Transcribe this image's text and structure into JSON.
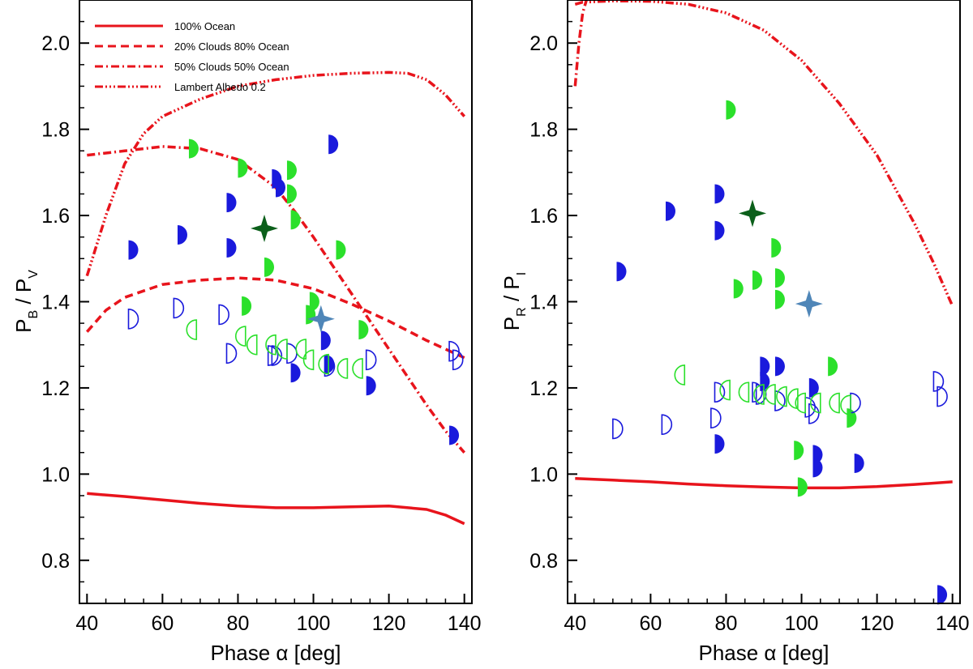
{
  "chart_data": [
    {
      "type": "scatter",
      "panel": "left",
      "xlabel": "Phase α [deg]",
      "ylabel_main": "P",
      "ylabel_sub1": "B",
      "ylabel_sep": " / P",
      "ylabel_sub2": "V",
      "xlim": [
        38,
        142
      ],
      "ylim": [
        0.7,
        2.1
      ],
      "xticks": [
        40,
        60,
        80,
        100,
        120,
        140
      ],
      "yticks": [
        0.8,
        1.0,
        1.2,
        1.4,
        1.6,
        1.8,
        2.0
      ],
      "xtick_labels": [
        "40",
        "60",
        "80",
        "100",
        "120",
        "140"
      ],
      "ytick_labels": [
        "0.8",
        "1.0",
        "1.2",
        "1.4",
        "1.6",
        "1.8",
        "2.0"
      ],
      "legend": [
        {
          "label": "100% Ocean",
          "style": "solid"
        },
        {
          "label": "20% Clouds 80% Ocean",
          "style": "dashed"
        },
        {
          "label": "50% Clouds 50% Ocean",
          "style": "dashdot"
        },
        {
          "label": "Lambert Albedo 0.2",
          "style": "dashdotdotdot"
        }
      ],
      "lines": [
        {
          "name": "100% Ocean",
          "style": "solid",
          "x": [
            40,
            50,
            60,
            70,
            80,
            90,
            100,
            110,
            120,
            130,
            135,
            140
          ],
          "y": [
            0.955,
            0.948,
            0.94,
            0.932,
            0.926,
            0.922,
            0.922,
            0.924,
            0.926,
            0.918,
            0.905,
            0.885
          ]
        },
        {
          "name": "20% Clouds 80% Ocean",
          "style": "dashed",
          "x": [
            40,
            45,
            50,
            60,
            70,
            80,
            90,
            100,
            110,
            120,
            130,
            135,
            140
          ],
          "y": [
            1.33,
            1.38,
            1.41,
            1.44,
            1.45,
            1.455,
            1.45,
            1.43,
            1.395,
            1.355,
            1.31,
            1.29,
            1.27
          ]
        },
        {
          "name": "50% Clouds 50% Ocean",
          "style": "dashdot",
          "x": [
            40,
            50,
            60,
            70,
            80,
            90,
            95,
            100,
            110,
            120,
            130,
            135,
            140
          ],
          "y": [
            1.74,
            1.75,
            1.76,
            1.755,
            1.73,
            1.665,
            1.61,
            1.55,
            1.42,
            1.29,
            1.16,
            1.1,
            1.05
          ]
        },
        {
          "name": "Lambert Albedo 0.2",
          "style": "dashdotdotdot",
          "x": [
            40,
            45,
            50,
            55,
            60,
            70,
            80,
            90,
            100,
            110,
            120,
            125,
            130,
            135,
            140
          ],
          "y": [
            1.46,
            1.6,
            1.72,
            1.79,
            1.83,
            1.87,
            1.9,
            1.915,
            1.925,
            1.93,
            1.932,
            1.93,
            1.915,
            1.88,
            1.83
          ]
        }
      ],
      "series": [
        {
          "name": "blue filled",
          "marker": "half-right",
          "fill": "#1a1adc",
          "x": [
            51,
            64,
            77,
            77,
            89,
            90,
            94,
            102,
            103,
            104,
            114,
            136
          ],
          "y": [
            1.52,
            1.555,
            1.63,
            1.525,
            1.685,
            1.665,
            1.235,
            1.31,
            1.255,
            1.765,
            1.205,
            1.09
          ]
        },
        {
          "name": "green filled",
          "marker": "half-right",
          "fill": "#2be02b",
          "x": [
            67,
            80,
            81,
            87,
            93,
            93,
            94,
            98,
            99,
            106,
            112
          ],
          "y": [
            1.755,
            1.71,
            1.39,
            1.48,
            1.705,
            1.65,
            1.59,
            1.37,
            1.4,
            1.52,
            1.335
          ]
        },
        {
          "name": "blue open",
          "marker": "half-right-open",
          "stroke": "#1a1adc",
          "x": [
            51,
            63,
            75,
            77,
            88,
            89,
            93,
            103,
            114,
            136,
            137
          ],
          "y": [
            1.36,
            1.385,
            1.37,
            1.28,
            1.275,
            1.275,
            1.28,
            1.25,
            1.265,
            1.285,
            1.265
          ]
        },
        {
          "name": "green open",
          "marker": "half-left-open",
          "stroke": "#2be02b",
          "x": [
            69,
            82,
            85,
            90,
            93,
            98,
            100,
            104,
            109,
            113
          ],
          "y": [
            1.335,
            1.32,
            1.3,
            1.3,
            1.29,
            1.29,
            1.265,
            1.255,
            1.245,
            1.245
          ]
        },
        {
          "name": "dark green star",
          "marker": "star",
          "fill": "#0b5f1a",
          "x": [
            87
          ],
          "y": [
            1.57
          ]
        },
        {
          "name": "steel blue star",
          "marker": "star",
          "fill": "#4f86b8",
          "x": [
            102
          ],
          "y": [
            1.36
          ]
        }
      ]
    },
    {
      "type": "scatter",
      "panel": "right",
      "xlabel": "Phase α [deg]",
      "ylabel_main": "P",
      "ylabel_sub1": "R",
      "ylabel_sep": " / P",
      "ylabel_sub2": "I",
      "xlim": [
        38,
        142
      ],
      "ylim": [
        0.7,
        2.1
      ],
      "xticks": [
        40,
        60,
        80,
        100,
        120,
        140
      ],
      "yticks": [
        0.8,
        1.0,
        1.2,
        1.4,
        1.6,
        1.8,
        2.0
      ],
      "xtick_labels": [
        "40",
        "60",
        "80",
        "100",
        "120",
        "140"
      ],
      "ytick_labels": [
        "0.8",
        "1.0",
        "1.2",
        "1.4",
        "1.6",
        "1.8",
        "2.0"
      ],
      "lines": [
        {
          "name": "100% Ocean",
          "style": "solid",
          "x": [
            40,
            50,
            60,
            70,
            80,
            90,
            100,
            110,
            120,
            130,
            140
          ],
          "y": [
            0.99,
            0.986,
            0.982,
            0.977,
            0.973,
            0.97,
            0.968,
            0.968,
            0.971,
            0.976,
            0.982
          ]
        },
        {
          "name": "50% Clouds 50% Ocean",
          "style": "dashdot",
          "x": [
            40,
            41,
            42,
            43
          ],
          "y": [
            1.9,
            2.0,
            2.07,
            2.1
          ]
        },
        {
          "name": "Lambert Albedo 0.2",
          "style": "dashdotdotdot",
          "x": [
            40,
            42,
            50,
            60,
            70,
            80,
            90,
            100,
            110,
            120,
            130,
            135,
            140
          ],
          "y": [
            2.09,
            2.095,
            2.098,
            2.097,
            2.09,
            2.07,
            2.03,
            1.96,
            1.86,
            1.74,
            1.58,
            1.49,
            1.39
          ]
        }
      ],
      "series": [
        {
          "name": "blue filled",
          "marker": "half-right",
          "fill": "#1a1adc",
          "x": [
            51,
            64,
            77,
            77,
            77,
            89,
            89,
            93,
            102,
            103,
            103,
            114,
            136
          ],
          "y": [
            1.47,
            1.61,
            1.65,
            1.565,
            1.07,
            1.25,
            1.215,
            1.25,
            1.2,
            1.045,
            1.015,
            1.025,
            0.72
          ]
        },
        {
          "name": "green filled",
          "marker": "half-right",
          "fill": "#2be02b",
          "x": [
            80,
            82,
            87,
            92,
            93,
            93,
            98,
            99,
            107,
            112
          ],
          "y": [
            1.845,
            1.43,
            1.45,
            1.525,
            1.455,
            1.405,
            1.055,
            0.97,
            1.25,
            1.13
          ]
        },
        {
          "name": "blue open",
          "marker": "half-right-open",
          "stroke": "#1a1adc",
          "x": [
            50,
            63,
            76,
            77,
            87,
            88,
            93,
            101,
            102,
            113,
            135,
            136
          ],
          "y": [
            1.105,
            1.115,
            1.13,
            1.19,
            1.19,
            1.185,
            1.17,
            1.155,
            1.14,
            1.165,
            1.215,
            1.18
          ]
        },
        {
          "name": "green open",
          "marker": "half-left-open",
          "stroke": "#2be02b",
          "x": [
            69,
            81,
            86,
            90,
            93,
            96,
            99,
            101,
            105,
            110,
            113
          ],
          "y": [
            1.23,
            1.195,
            1.19,
            1.185,
            1.185,
            1.18,
            1.175,
            1.165,
            1.165,
            1.165,
            1.16
          ]
        },
        {
          "name": "dark green star",
          "marker": "star",
          "fill": "#0b5f1a",
          "x": [
            87
          ],
          "y": [
            1.605
          ]
        },
        {
          "name": "steel blue star",
          "marker": "star",
          "fill": "#4f86b8",
          "x": [
            102
          ],
          "y": [
            1.395
          ]
        }
      ]
    }
  ]
}
